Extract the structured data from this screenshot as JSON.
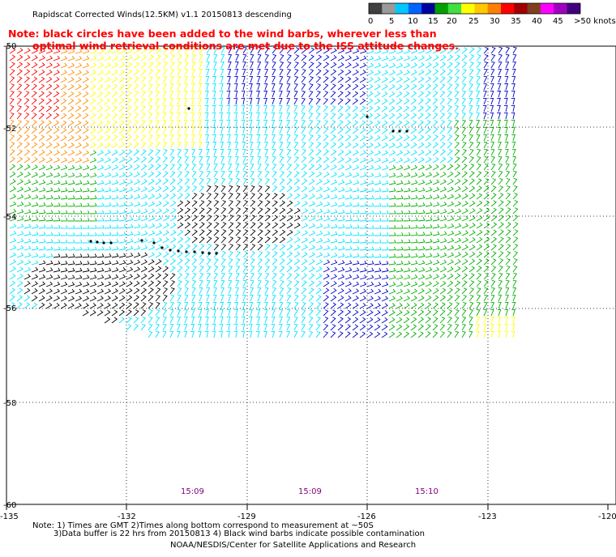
{
  "header": {
    "title": "Rapidscat Corrected Winds(12.5KM) v1.1 20150813 descending"
  },
  "colorbar": {
    "labels": [
      "0",
      "5",
      "10",
      "15",
      "20",
      "25",
      "30",
      "35",
      "40",
      "45",
      ">50 knots"
    ],
    "colors": [
      "#404040",
      "#9a9a9a",
      "#00c8ff",
      "#0064ff",
      "#0000a0",
      "#00a000",
      "#40e040",
      "#ffff00",
      "#ffc800",
      "#ff8000",
      "#ff0000",
      "#a00000",
      "#804020",
      "#ff00ff",
      "#a000c0",
      "#400080"
    ]
  },
  "note": {
    "line1": "Note: black circles have been added to the wind barbs, wherever less than",
    "line2": "optimal wind retrieval conditions are met due to the ISS attitude changes."
  },
  "axes": {
    "lon_ticks": [
      "-135",
      "-132",
      "-129",
      "-126",
      "-123",
      "-120"
    ],
    "lat_ticks": [
      "-50",
      "-52",
      "-54",
      "-56",
      "-58",
      "-60"
    ]
  },
  "pass_times": [
    "15:09",
    "15:09",
    "15:10"
  ],
  "footer": {
    "line1": "Note: 1) Times are GMT 2)Times along bottom correspond to measurement at ~50S",
    "line2": "3)Data buffer is 22 hrs from 20150813 4) Black wind barbs indicate possible contamination",
    "line3": "NOAA/NESDIS/Center for Satellite Applications and Research"
  },
  "legend_colors": {
    "speed_0_5": "#000000",
    "speed_5_10": "#00e5ff",
    "speed_10_15": "#0000cc",
    "speed_15_20": "#00b000",
    "speed_20_25": "#ffff00",
    "speed_25_30": "#ff8c00",
    "speed_30_35": "#ff0000",
    "qc_flag": "#000000"
  }
}
